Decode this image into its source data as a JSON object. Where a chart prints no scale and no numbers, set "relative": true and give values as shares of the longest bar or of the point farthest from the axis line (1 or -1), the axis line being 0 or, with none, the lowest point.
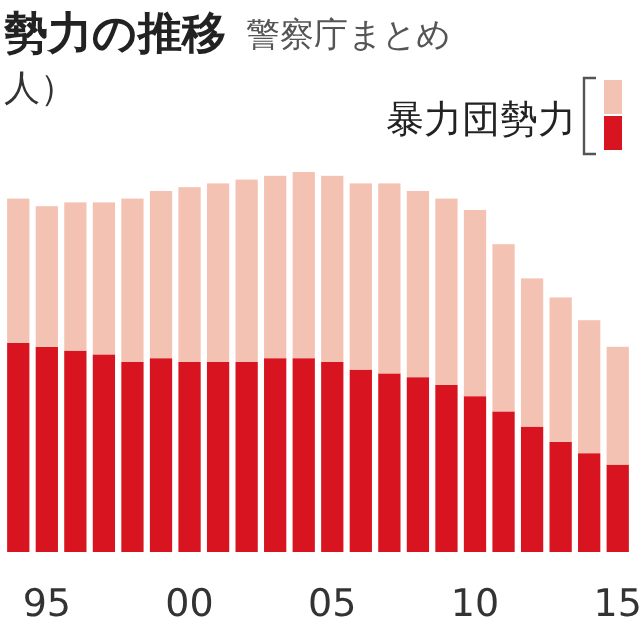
{
  "chart_data": {
    "type": "bar",
    "title": "勢力の推移",
    "subtitle": "警察庁まとめ",
    "ylabel": "人）",
    "legend_title": "暴力団勢力",
    "stacked": true,
    "relative": true,
    "categories": [
      null,
      "95",
      null,
      null,
      null,
      null,
      "00",
      null,
      null,
      null,
      null,
      "05",
      null,
      null,
      null,
      null,
      "10",
      null,
      null,
      null,
      null,
      "15"
    ],
    "series": [
      {
        "color": "#d7141f",
        "values": [
          0.55,
          0.54,
          0.53,
          0.52,
          0.5,
          0.51,
          0.5,
          0.5,
          0.5,
          0.51,
          0.51,
          0.5,
          0.48,
          0.47,
          0.46,
          0.44,
          0.41,
          0.37,
          0.33,
          0.29,
          0.26,
          0.23
        ]
      },
      {
        "color": "#f4c2b2",
        "values": [
          0.38,
          0.37,
          0.39,
          0.4,
          0.43,
          0.44,
          0.46,
          0.47,
          0.48,
          0.48,
          0.49,
          0.49,
          0.49,
          0.5,
          0.49,
          0.49,
          0.49,
          0.44,
          0.39,
          0.38,
          0.35,
          0.31
        ]
      }
    ]
  }
}
